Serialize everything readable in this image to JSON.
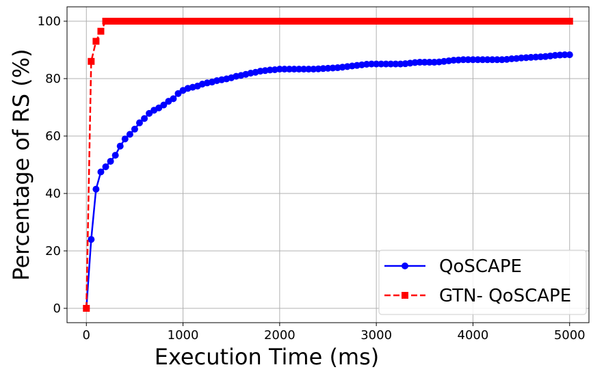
{
  "chart_data": {
    "type": "line",
    "xlabel": "Execution Time (ms)",
    "ylabel": "Percentage of RS (%)",
    "xlim": [
      -200,
      5200
    ],
    "ylim": [
      -5,
      105
    ],
    "x_ticks": [
      0,
      1000,
      2000,
      3000,
      4000,
      5000
    ],
    "y_ticks": [
      0,
      20,
      40,
      60,
      80,
      100
    ],
    "grid": true,
    "legend_position": "bottom-right",
    "series": [
      {
        "name": "QoSCAPE",
        "color": "#0000ff",
        "line_style": "solid",
        "marker": "circle",
        "x": [
          0,
          50,
          100,
          150,
          200,
          250,
          300,
          350,
          400,
          450,
          500,
          550,
          600,
          650,
          700,
          750,
          800,
          850,
          900,
          950,
          1000,
          1050,
          1100,
          1150,
          1200,
          1250,
          1300,
          1350,
          1400,
          1450,
          1500,
          1550,
          1600,
          1650,
          1700,
          1750,
          1800,
          1850,
          1900,
          1950,
          2000,
          2050,
          2100,
          2150,
          2200,
          2250,
          2300,
          2350,
          2400,
          2450,
          2500,
          2550,
          2600,
          2650,
          2700,
          2750,
          2800,
          2850,
          2900,
          2950,
          3000,
          3050,
          3100,
          3150,
          3200,
          3250,
          3300,
          3350,
          3400,
          3450,
          3500,
          3550,
          3600,
          3650,
          3700,
          3750,
          3800,
          3850,
          3900,
          3950,
          4000,
          4050,
          4100,
          4150,
          4200,
          4250,
          4300,
          4350,
          4400,
          4450,
          4500,
          4550,
          4600,
          4650,
          4700,
          4750,
          4800,
          4850,
          4900,
          4950,
          5000
        ],
        "y": [
          0,
          24,
          41.5,
          47.5,
          49.3,
          51.2,
          53.3,
          56.5,
          59,
          60.6,
          62.4,
          64.6,
          66.1,
          67.9,
          69,
          69.8,
          70.8,
          72.1,
          73,
          74.8,
          75.9,
          76.6,
          77,
          77.4,
          78.1,
          78.5,
          78.8,
          79.3,
          79.6,
          79.9,
          80.3,
          80.8,
          81.1,
          81.5,
          81.9,
          82.2,
          82.6,
          82.8,
          83,
          83.1,
          83.3,
          83.3,
          83.3,
          83.3,
          83.3,
          83.3,
          83.3,
          83.3,
          83.4,
          83.5,
          83.6,
          83.7,
          83.8,
          84,
          84.2,
          84.4,
          84.6,
          84.8,
          85,
          85.1,
          85.1,
          85.1,
          85.1,
          85.1,
          85.1,
          85.1,
          85.2,
          85.4,
          85.6,
          85.7,
          85.7,
          85.7,
          85.7,
          85.8,
          86,
          86.2,
          86.4,
          86.5,
          86.6,
          86.6,
          86.6,
          86.6,
          86.6,
          86.6,
          86.6,
          86.6,
          86.6,
          86.7,
          86.9,
          87,
          87.2,
          87.3,
          87.4,
          87.5,
          87.6,
          87.7,
          87.9,
          88.1,
          88.2,
          88.3,
          88.3
        ]
      },
      {
        "name": "GTN- QoSCAPE",
        "color": "#ff0000",
        "line_style": "dashed",
        "marker": "square",
        "x": [
          0,
          50,
          100,
          150,
          200,
          250,
          300,
          350,
          400,
          450,
          500,
          550,
          600,
          650,
          700,
          750,
          800,
          850,
          900,
          950,
          1000,
          1050,
          1100,
          1150,
          1200,
          1250,
          1300,
          1350,
          1400,
          1450,
          1500,
          1550,
          1600,
          1650,
          1700,
          1750,
          1800,
          1850,
          1900,
          1950,
          2000,
          2050,
          2100,
          2150,
          2200,
          2250,
          2300,
          2350,
          2400,
          2450,
          2500,
          2550,
          2600,
          2650,
          2700,
          2750,
          2800,
          2850,
          2900,
          2950,
          3000,
          3050,
          3100,
          3150,
          3200,
          3250,
          3300,
          3350,
          3400,
          3450,
          3500,
          3550,
          3600,
          3650,
          3700,
          3750,
          3800,
          3850,
          3900,
          3950,
          4000,
          4050,
          4100,
          4150,
          4200,
          4250,
          4300,
          4350,
          4400,
          4450,
          4500,
          4550,
          4600,
          4650,
          4700,
          4750,
          4800,
          4850,
          4900,
          4950,
          5000
        ],
        "y": [
          0,
          86,
          93,
          96.5,
          100,
          100,
          100,
          100,
          100,
          100,
          100,
          100,
          100,
          100,
          100,
          100,
          100,
          100,
          100,
          100,
          100,
          100,
          100,
          100,
          100,
          100,
          100,
          100,
          100,
          100,
          100,
          100,
          100,
          100,
          100,
          100,
          100,
          100,
          100,
          100,
          100,
          100,
          100,
          100,
          100,
          100,
          100,
          100,
          100,
          100,
          100,
          100,
          100,
          100,
          100,
          100,
          100,
          100,
          100,
          100,
          100,
          100,
          100,
          100,
          100,
          100,
          100,
          100,
          100,
          100,
          100,
          100,
          100,
          100,
          100,
          100,
          100,
          100,
          100,
          100,
          100,
          100,
          100,
          100,
          100,
          100,
          100,
          100,
          100,
          100,
          100,
          100,
          100,
          100,
          100,
          100,
          100,
          100,
          100,
          100,
          100
        ]
      }
    ]
  }
}
